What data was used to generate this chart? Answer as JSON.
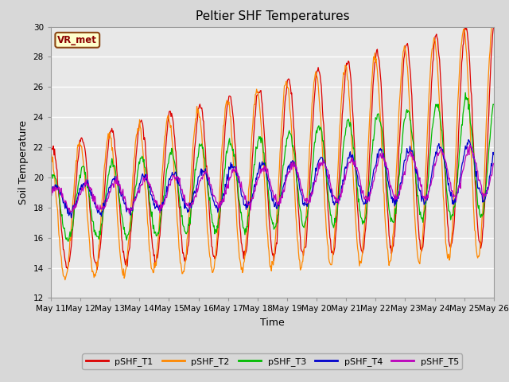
{
  "title": "Peltier SHF Temperatures",
  "xlabel": "Time",
  "ylabel": "Soil Temperature",
  "ylim": [
    12,
    30
  ],
  "yticks": [
    12,
    14,
    16,
    18,
    20,
    22,
    24,
    26,
    28,
    30
  ],
  "n_days": 15,
  "points_per_day": 48,
  "annotation": "VR_met",
  "colors": {
    "pSHF_T1": "#dd0000",
    "pSHF_T2": "#ff8800",
    "pSHF_T3": "#00bb00",
    "pSHF_T4": "#0000cc",
    "pSHF_T5": "#bb00bb"
  },
  "bg_color": "#d8d8d8",
  "plot_bg_color": "#e8e8e8",
  "title_fontsize": 11,
  "axis_label_fontsize": 9,
  "tick_fontsize": 7.5,
  "legend_fontsize": 8
}
